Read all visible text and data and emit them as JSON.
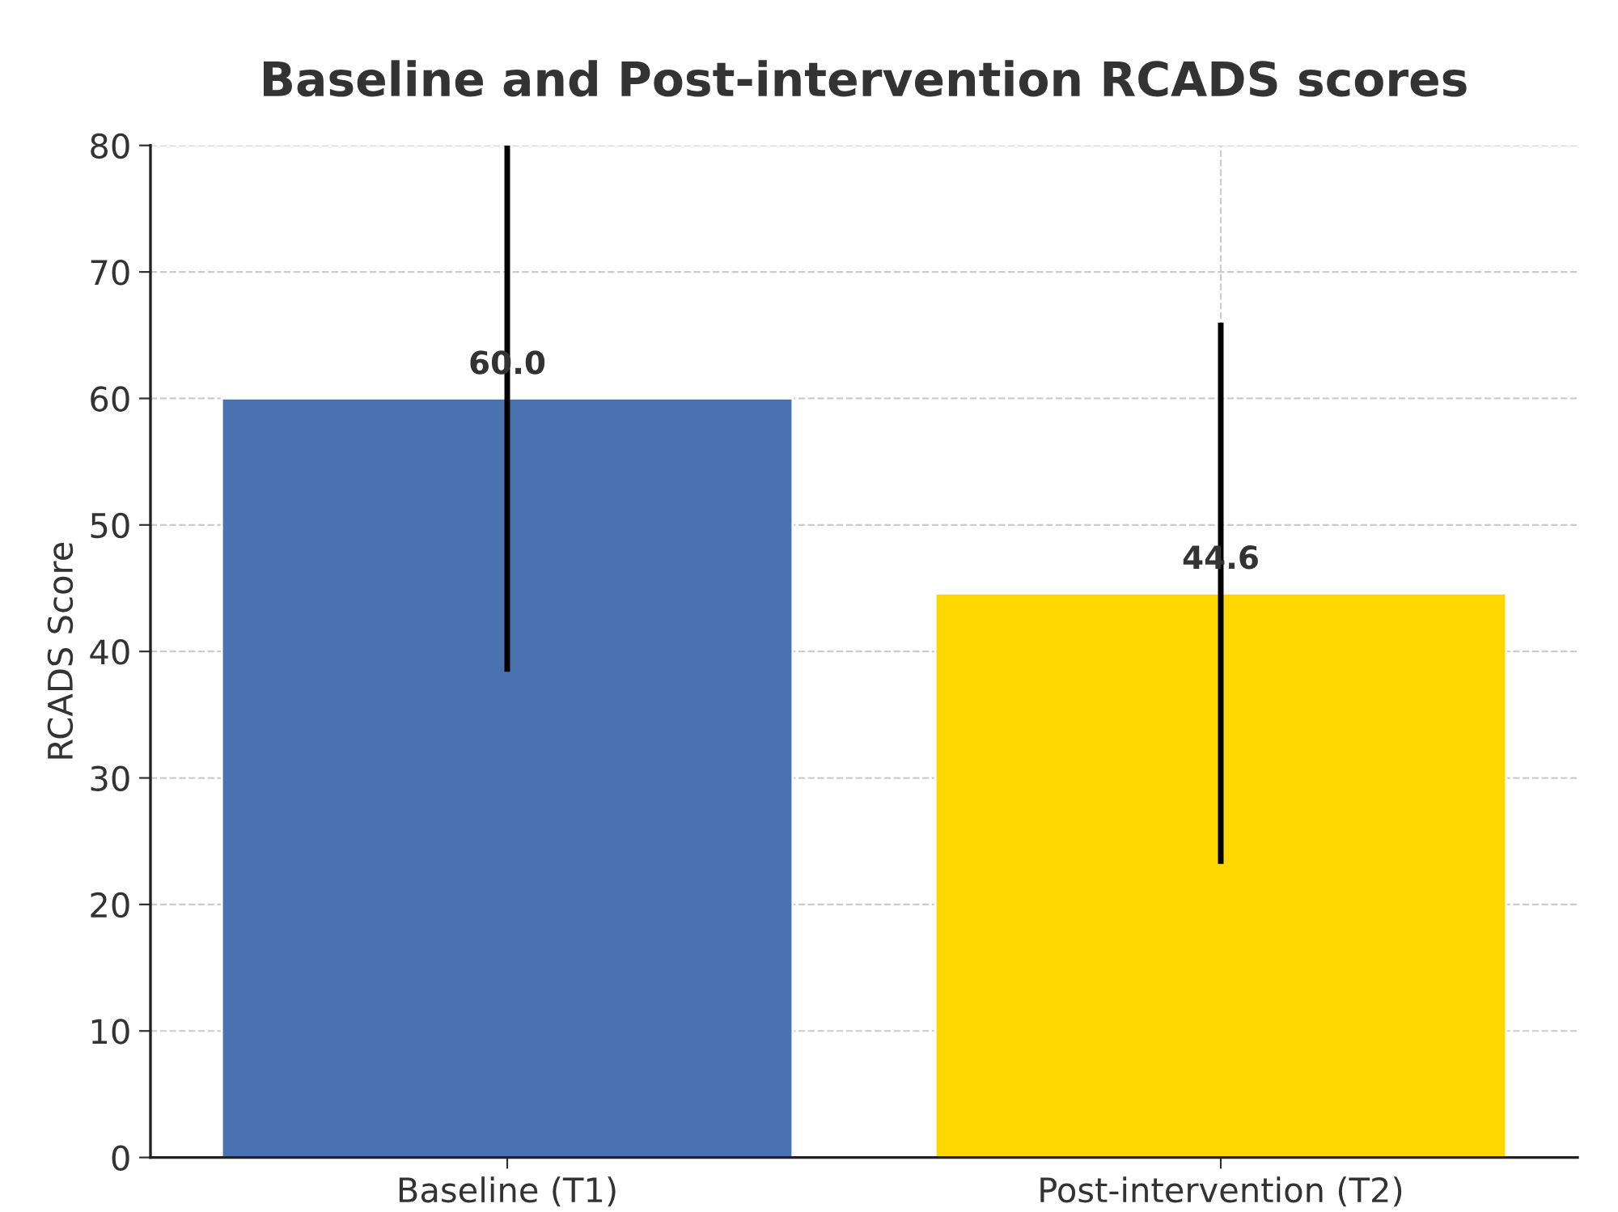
{
  "chart_data": {
    "type": "bar",
    "title": "Baseline and Post-intervention RCADS scores",
    "ylabel": "RCADS Score",
    "categories": [
      "Baseline (T1)",
      "Post-intervention (T2)"
    ],
    "values": [
      60.0,
      44.6
    ],
    "colors": [
      "#4a72b0",
      "#ffd700"
    ],
    "errors": [
      [
        38.4,
        80
      ],
      21.4
    ],
    "value_labels": [
      "60.0",
      "44.6"
    ],
    "ylim": [
      0,
      80
    ],
    "yticks": [
      0,
      10,
      20,
      30,
      40,
      50,
      60,
      70,
      80
    ],
    "grid": true
  }
}
